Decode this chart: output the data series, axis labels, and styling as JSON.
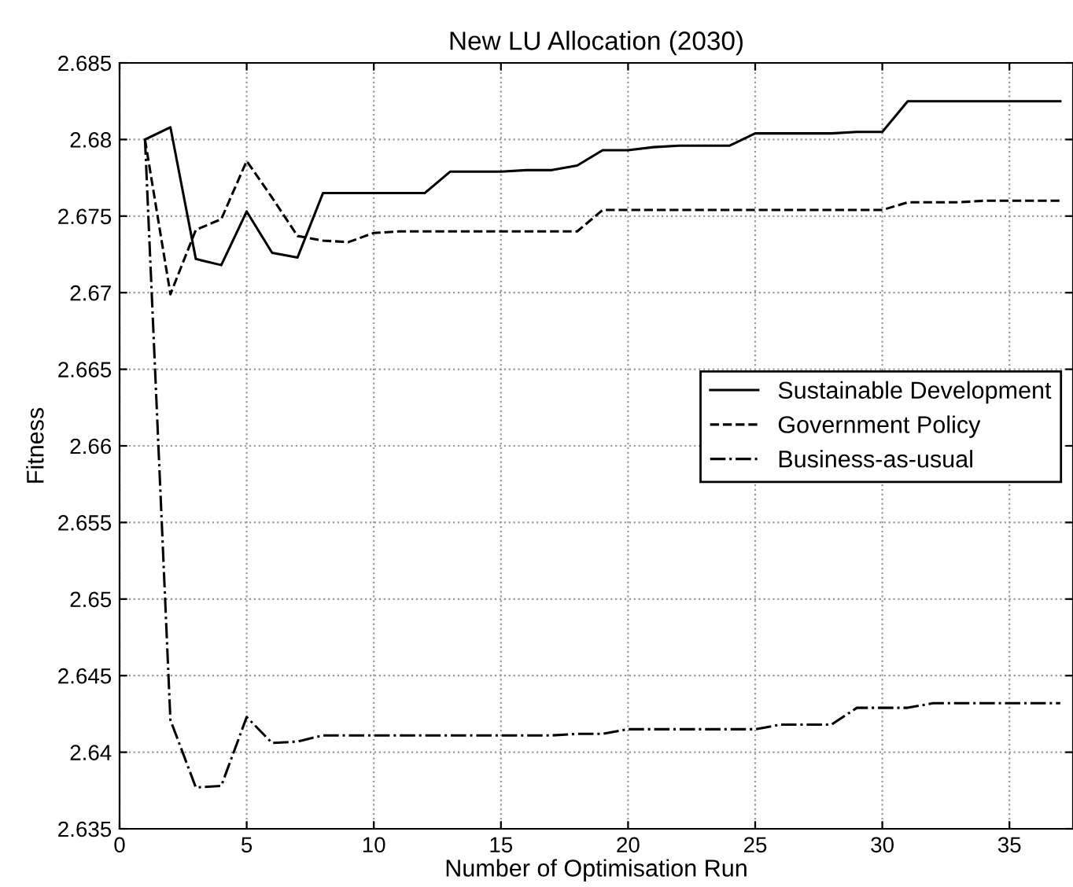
{
  "chart_data": {
    "type": "line",
    "title": "New LU Allocation (2030)",
    "xlabel": "Number of Optimisation Run",
    "ylabel": "Fitness",
    "x": [
      1,
      2,
      3,
      4,
      5,
      6,
      7,
      8,
      9,
      10,
      11,
      12,
      13,
      14,
      15,
      16,
      17,
      18,
      19,
      20,
      21,
      22,
      23,
      24,
      25,
      26,
      27,
      28,
      29,
      30,
      31,
      32,
      33,
      34,
      35,
      36,
      37
    ],
    "series": [
      {
        "name": "Sustainable Development",
        "color": "#000000",
        "line_style": "solid",
        "values": [
          2.68,
          2.6808,
          2.6722,
          2.6718,
          2.6753,
          2.6726,
          2.6723,
          2.6765,
          2.6765,
          2.6765,
          2.6765,
          2.6765,
          2.6779,
          2.6779,
          2.6779,
          2.678,
          2.678,
          2.6783,
          2.6793,
          2.6793,
          2.6795,
          2.6796,
          2.6796,
          2.6796,
          2.6804,
          2.6804,
          2.6804,
          2.6804,
          2.6805,
          2.6805,
          2.6825,
          2.6825,
          2.6825,
          2.6825,
          2.6825,
          2.6825,
          2.6825
        ]
      },
      {
        "name": "Government Policy",
        "color": "#000000",
        "line_style": "dashed",
        "values": [
          2.68,
          2.6699,
          2.6741,
          2.6748,
          2.6786,
          2.6762,
          2.6737,
          2.6734,
          2.6733,
          2.6739,
          2.674,
          2.674,
          2.674,
          2.674,
          2.674,
          2.674,
          2.674,
          2.674,
          2.6754,
          2.6754,
          2.6754,
          2.6754,
          2.6754,
          2.6754,
          2.6754,
          2.6754,
          2.6754,
          2.6754,
          2.6754,
          2.6754,
          2.6759,
          2.6759,
          2.6759,
          2.676,
          2.676,
          2.676,
          2.676
        ]
      },
      {
        "name": "Business-as-usual",
        "color": "#000000",
        "line_style": "dashdot",
        "values": [
          2.68,
          2.6421,
          2.6377,
          2.6378,
          2.6423,
          2.6406,
          2.6407,
          2.6411,
          2.6411,
          2.6411,
          2.6411,
          2.6411,
          2.6411,
          2.6411,
          2.6411,
          2.6411,
          2.6411,
          2.6412,
          2.6412,
          2.6415,
          2.6415,
          2.6415,
          2.6415,
          2.6415,
          2.6415,
          2.6418,
          2.6418,
          2.6418,
          2.6429,
          2.6429,
          2.6429,
          2.6432,
          2.6432,
          2.6432,
          2.6432,
          2.6432,
          2.6432
        ]
      }
    ],
    "xlim": [
      0,
      37.5
    ],
    "xticks": [
      0,
      5,
      10,
      15,
      20,
      25,
      30,
      35
    ],
    "ylim": [
      2.635,
      2.685
    ],
    "yticks": [
      2.635,
      2.64,
      2.645,
      2.65,
      2.655,
      2.66,
      2.665,
      2.67,
      2.675,
      2.68,
      2.685
    ],
    "grid": true,
    "legend": "center right",
    "marker": "none"
  }
}
